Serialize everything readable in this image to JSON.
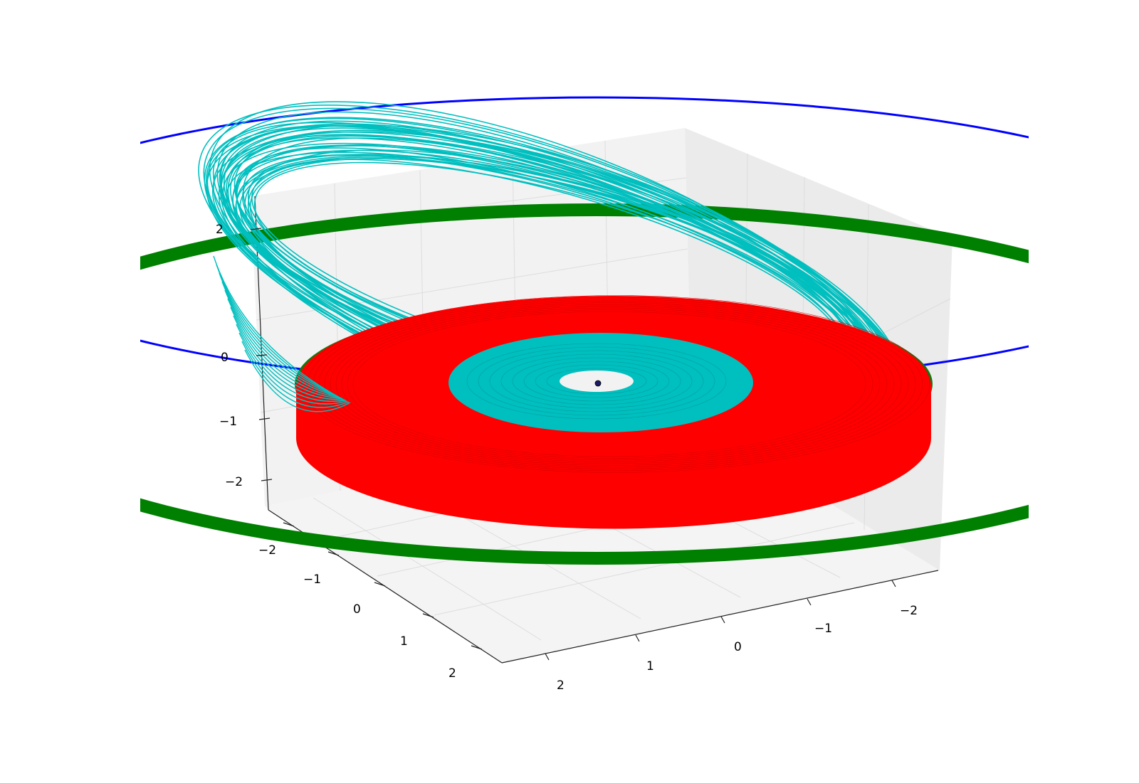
{
  "chart_data": {
    "type": "line",
    "projection": "3d",
    "title": "",
    "xlabel": "",
    "ylabel": "",
    "zlabel": "",
    "grid": true,
    "legend": "none",
    "colors": {
      "pane": "#f2f2f2",
      "pane_side": "#ebebeb",
      "grid": "#dddddd",
      "axis": "#222222",
      "outer_orbit": "#0000ff",
      "green_orbit": "#008000",
      "red_disc": "#ff0000",
      "cyan_band": "#00bfbf",
      "center_marker": "#1a1a66"
    },
    "x_axis": {
      "range": [
        -2.5,
        2.5
      ],
      "ticks": [
        "2",
        "1",
        "0",
        "−1",
        "−2"
      ]
    },
    "y_axis": {
      "range": [
        -2.5,
        2.5
      ],
      "ticks": [
        "−2",
        "−1",
        "0",
        "1",
        "2"
      ]
    },
    "z_axis": {
      "range": [
        -2.5,
        2.5
      ],
      "ticks": [
        "2",
        "0",
        "−1",
        "−2"
      ]
    },
    "series": [
      {
        "kind": "orbit",
        "color": "#0000ff",
        "radius": 3.6,
        "z": 2.3,
        "description_visible": false
      },
      {
        "kind": "orbit-band",
        "color": "#008000",
        "radius": 2.35,
        "z": 0.0
      },
      {
        "kind": "tilted-orbits",
        "color": "#00bfbf",
        "radius_range": [
          1.2,
          2.1
        ],
        "count": 40
      },
      {
        "kind": "disc",
        "color": "#ff0000",
        "radius_range": [
          0.9,
          1.5
        ],
        "z": 0.0
      },
      {
        "kind": "disc",
        "color": "#00bfbf",
        "radius_range": [
          0.25,
          0.75
        ],
        "z": 0.0
      },
      {
        "kind": "point",
        "color": "#1a1a66",
        "x": 0,
        "y": 0,
        "z": 0
      }
    ]
  }
}
